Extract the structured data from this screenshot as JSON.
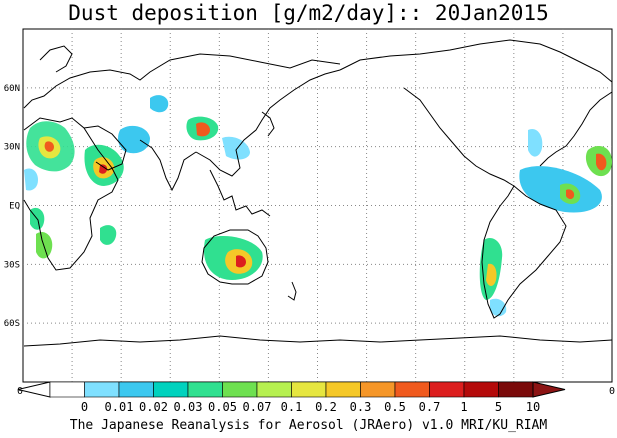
{
  "title": "Dust deposition [g/m2/day]:: 20Jan2015",
  "footer": "The Japanese Reanalysis for Aerosol (JRAero) v1.0 MRI/KU_RIAM",
  "map": {
    "lat_labels": [
      "60N",
      "30N",
      "EQ",
      "30S",
      "60S"
    ],
    "lat_values": [
      60,
      30,
      0,
      -30,
      -60
    ],
    "left_edge_label": "0",
    "right_edge_label": "0",
    "gridlines": true
  },
  "colorbar": {
    "labels": [
      "0",
      "0.01",
      "0.02",
      "0.03",
      "0.05",
      "0.07",
      "0.1",
      "0.2",
      "0.3",
      "0.5",
      "0.7",
      "1",
      "5",
      "10"
    ],
    "colors": [
      "#ffffff",
      "#ffffff",
      "#7fe0ff",
      "#3cc8ef",
      "#00d2be",
      "#30e090",
      "#6ee050",
      "#b6f050",
      "#e6e640",
      "#f5c828",
      "#f59628",
      "#f05a1e",
      "#dc1e1e",
      "#b40a0a",
      "#7a0a0a",
      "#8c1414"
    ]
  }
}
